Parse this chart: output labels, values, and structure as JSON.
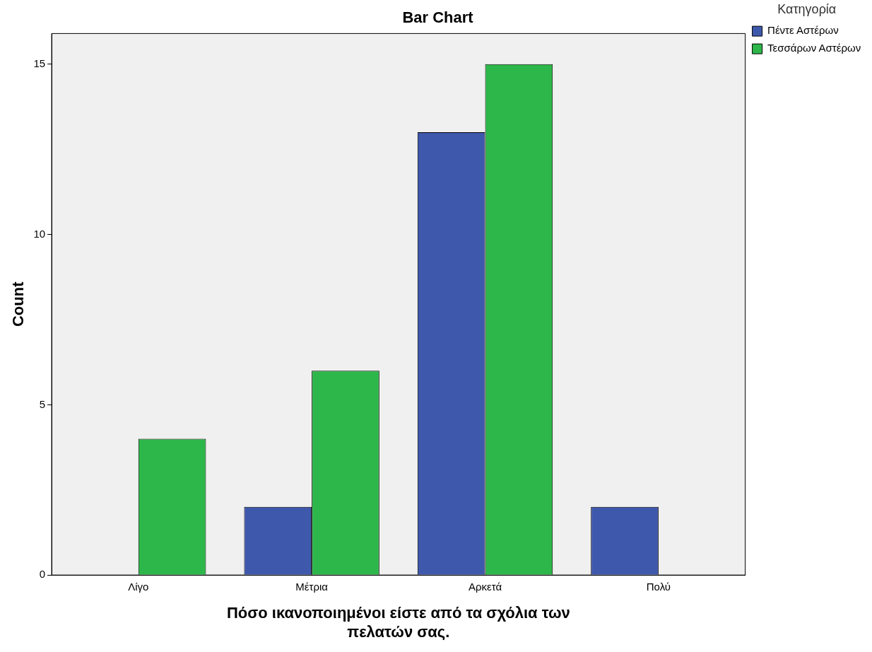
{
  "chart_data": {
    "type": "bar",
    "title": "Bar Chart",
    "xlabel": "Πόσο ικανοποιημένοι είστε από τα σχόλια των πελατών σας.",
    "ylabel": "Count",
    "legend_title": "Κατηγορία",
    "categories": [
      "Λίγο",
      "Μέτρια",
      "Αρκετά",
      "Πολύ"
    ],
    "series": [
      {
        "name": "Πέντε Αστέρων",
        "color": "#3e58ac",
        "values": [
          0,
          2,
          13,
          2
        ]
      },
      {
        "name": "Τεσσάρων Αστέρων",
        "color": "#2db74a",
        "values": [
          4,
          6,
          15,
          0
        ]
      }
    ],
    "ylim": [
      0,
      15.9
    ],
    "yticks": [
      0,
      5,
      10,
      15
    ],
    "grid": false,
    "legend": "top right"
  }
}
